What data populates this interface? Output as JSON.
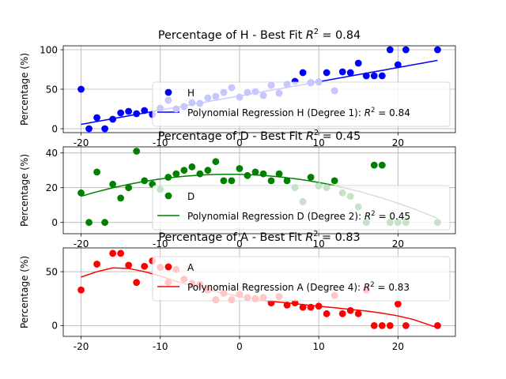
{
  "chart_data": [
    {
      "type": "scatter",
      "title": "Percentage of H - Best Fit R² = 0.84",
      "title_main": "Percentage of H - Best Fit ",
      "title_r2": "R",
      "title_exp": "2",
      "title_tail": " = 0.84",
      "ylabel": "Percentage (%)",
      "xlim": [
        -22.25,
        27.25
      ],
      "ylim": [
        -5,
        105
      ],
      "xticks": [
        -20,
        -10,
        0,
        10,
        20
      ],
      "yticks": [
        0,
        50,
        100
      ],
      "grid": true,
      "legend_placement": "lower-right",
      "color": "#0000ff",
      "series": [
        {
          "name": "H",
          "kind": "points",
          "points": [
            [
              -20,
              50
            ],
            [
              -19,
              0
            ],
            [
              -18,
              14
            ],
            [
              -17,
              0
            ],
            [
              -16,
              12
            ],
            [
              -15,
              20
            ],
            [
              -14,
              22
            ],
            [
              -13,
              19
            ],
            [
              -12,
              23
            ],
            [
              -11,
              18
            ],
            [
              -10,
              26
            ],
            [
              -9,
              36
            ],
            [
              -8,
              25
            ],
            [
              -7,
              28
            ],
            [
              -6,
              33
            ],
            [
              -5,
              32
            ],
            [
              -4,
              39
            ],
            [
              -3,
              41
            ],
            [
              -2,
              46
            ],
            [
              -1,
              52
            ],
            [
              0,
              40
            ],
            [
              1,
              46
            ],
            [
              2,
              47
            ],
            [
              3,
              42
            ],
            [
              4,
              55
            ],
            [
              5,
              45
            ],
            [
              6,
              56
            ],
            [
              7,
              60
            ],
            [
              8,
              71
            ],
            [
              9,
              58
            ],
            [
              10,
              59
            ],
            [
              11,
              71
            ],
            [
              12,
              48
            ],
            [
              13,
              72
            ],
            [
              14,
              71
            ],
            [
              15,
              83
            ],
            [
              16,
              67
            ],
            [
              17,
              67
            ],
            [
              18,
              67
            ],
            [
              19,
              100
            ],
            [
              20,
              81
            ],
            [
              21,
              100
            ],
            [
              25,
              100
            ]
          ]
        },
        {
          "name": "Polynomial Regression H (Degree 1): R² = 0.84",
          "kind": "fit",
          "coeffs": [
            41.5,
            1.8
          ]
        }
      ],
      "legend": {
        "point_label": "H",
        "fit_label_main": "Polynomial Regression H (Degree 1): ",
        "fit_label_r": "R",
        "fit_label_exp": "2",
        "fit_label_tail": " = 0.84"
      }
    },
    {
      "type": "scatter",
      "title": "Percentage of D - Best Fit R² = 0.45",
      "title_main": "Percentage of D - Best Fit ",
      "title_r2": "R",
      "title_exp": "2",
      "title_tail": " = 0.45",
      "ylabel": "Percentage (%)",
      "xlim": [
        -22.25,
        27.25
      ],
      "ylim": [
        -6.5,
        43.5
      ],
      "xticks": [
        -20,
        -10,
        0,
        10,
        20
      ],
      "yticks": [
        0,
        20,
        40
      ],
      "grid": true,
      "legend_placement": "lower-right",
      "color": "#008000",
      "series": [
        {
          "name": "D",
          "kind": "points",
          "points": [
            [
              -20,
              17
            ],
            [
              -19,
              0
            ],
            [
              -18,
              29
            ],
            [
              -17,
              0
            ],
            [
              -16,
              22
            ],
            [
              -15,
              14
            ],
            [
              -14,
              20
            ],
            [
              -13,
              41
            ],
            [
              -12,
              24
            ],
            [
              -11,
              22
            ],
            [
              -10,
              19
            ],
            [
              -9,
              26
            ],
            [
              -8,
              28
            ],
            [
              -7,
              30
            ],
            [
              -6,
              32
            ],
            [
              -5,
              28
            ],
            [
              -4,
              30
            ],
            [
              -3,
              35
            ],
            [
              -2,
              24
            ],
            [
              -1,
              24
            ],
            [
              0,
              31
            ],
            [
              1,
              27
            ],
            [
              2,
              29
            ],
            [
              3,
              28
            ],
            [
              4,
              24
            ],
            [
              5,
              28
            ],
            [
              6,
              24
            ],
            [
              7,
              20
            ],
            [
              8,
              12
            ],
            [
              9,
              26
            ],
            [
              10,
              21
            ],
            [
              11,
              20
            ],
            [
              12,
              24
            ],
            [
              13,
              17
            ],
            [
              14,
              15
            ],
            [
              15,
              9
            ],
            [
              16,
              0
            ],
            [
              17,
              33
            ],
            [
              18,
              33
            ],
            [
              19,
              0
            ],
            [
              20,
              0
            ],
            [
              21,
              0
            ],
            [
              25,
              0
            ]
          ]
        },
        {
          "name": "Polynomial Regression D (Degree 2): R² = 0.45",
          "kind": "fit",
          "coeffs": [
            27.65,
            -0.1,
            -0.0365
          ]
        }
      ],
      "legend": {
        "point_label": "D",
        "fit_label_main": "Polynomial Regression D (Degree 2): ",
        "fit_label_r": "R",
        "fit_label_exp": "2",
        "fit_label_tail": " = 0.45"
      }
    },
    {
      "type": "scatter",
      "title": "Percentage of A - Best Fit R² = 0.83",
      "title_main": "Percentage of A - Best Fit ",
      "title_r2": "R",
      "title_exp": "2",
      "title_tail": " = 0.83",
      "ylabel": "Percentage (%)",
      "xlim": [
        -22.25,
        27.25
      ],
      "ylim": [
        -10,
        72
      ],
      "xticks": [
        -20,
        -10,
        0,
        10,
        20
      ],
      "yticks": [
        0,
        50
      ],
      "grid": true,
      "legend_placement": "top-right",
      "color": "#ff0000",
      "series": [
        {
          "name": "A",
          "kind": "points",
          "points": [
            [
              -20,
              33
            ],
            [
              -18,
              57
            ],
            [
              -16,
              67
            ],
            [
              -15,
              67
            ],
            [
              -14,
              56
            ],
            [
              -13,
              40
            ],
            [
              -12,
              55
            ],
            [
              -11,
              60
            ],
            [
              -10,
              54
            ],
            [
              -9,
              40
            ],
            [
              -8,
              52
            ],
            [
              -7,
              43
            ],
            [
              -6,
              39
            ],
            [
              -5,
              38
            ],
            [
              -4,
              33
            ],
            [
              -3,
              24
            ],
            [
              -2,
              30
            ],
            [
              -1,
              24
            ],
            [
              0,
              29
            ],
            [
              1,
              26
            ],
            [
              2,
              25
            ],
            [
              3,
              26
            ],
            [
              4,
              21
            ],
            [
              5,
              27
            ],
            [
              6,
              19
            ],
            [
              7,
              21
            ],
            [
              8,
              17
            ],
            [
              9,
              17
            ],
            [
              10,
              18
            ],
            [
              11,
              11
            ],
            [
              12,
              28
            ],
            [
              13,
              11
            ],
            [
              14,
              14
            ],
            [
              15,
              11
            ],
            [
              16,
              33
            ],
            [
              17,
              0
            ],
            [
              18,
              0
            ],
            [
              19,
              0
            ],
            [
              20,
              20
            ],
            [
              21,
              0
            ],
            [
              25,
              0
            ]
          ]
        },
        {
          "name": "Polynomial Regression A (Degree 4): R² = 0.83",
          "kind": "fit",
          "knots": [
            [
              -20,
              45
            ],
            [
              -18,
              50
            ],
            [
              -16,
              53.5
            ],
            [
              -14,
              53
            ],
            [
              -12,
              50
            ],
            [
              -10,
              46
            ],
            [
              -8,
              41
            ],
            [
              -6,
              37
            ],
            [
              -4,
              33
            ],
            [
              -2,
              30
            ],
            [
              0,
              27
            ],
            [
              2,
              24.5
            ],
            [
              4,
              22.5
            ],
            [
              6,
              21
            ],
            [
              8,
              19.5
            ],
            [
              10,
              18
            ],
            [
              12,
              16.5
            ],
            [
              14,
              15
            ],
            [
              16,
              13.5
            ],
            [
              18,
              11.5
            ],
            [
              20,
              9
            ],
            [
              22,
              5.5
            ],
            [
              25,
              -2
            ]
          ]
        }
      ],
      "legend": {
        "point_label": "A",
        "fit_label_main": "Polynomial Regression A (Degree 4): ",
        "fit_label_r": "R",
        "fit_label_exp": "2",
        "fit_label_tail": " = 0.83"
      }
    }
  ]
}
